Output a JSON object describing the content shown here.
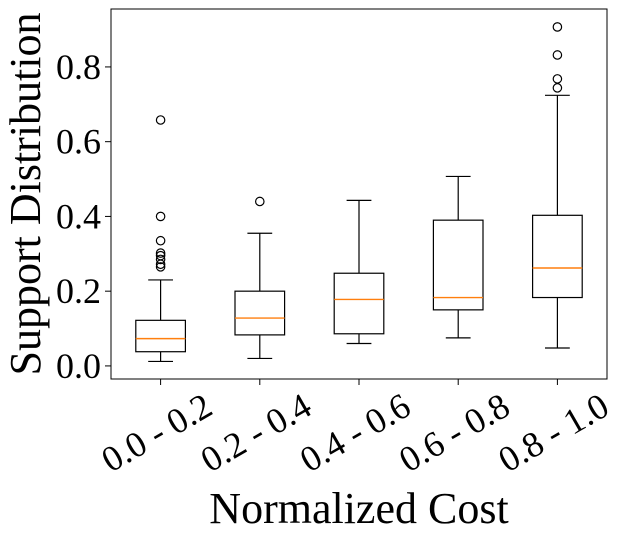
{
  "chart_data": {
    "type": "boxplot",
    "title": "",
    "xlabel": "Normalized Cost",
    "ylabel": "Support Distribution",
    "ylim": [
      -0.035,
      0.955
    ],
    "yticks": [
      0.0,
      0.2,
      0.4,
      0.6,
      0.8
    ],
    "ytick_labels": [
      "0.0",
      "0.2",
      "0.4",
      "0.6",
      "0.8"
    ],
    "grid": false,
    "colors": {
      "box": "#000000",
      "median": "#ff7f0e",
      "outlier": "#000000"
    },
    "categories": [
      "0.0 - 0.2",
      "0.2 - 0.4",
      "0.4 - 0.6",
      "0.6 - 0.8",
      "0.8 - 1.0"
    ],
    "boxes": [
      {
        "whisker_low": 0.012,
        "q1": 0.038,
        "median": 0.073,
        "q3": 0.122,
        "whisker_high": 0.23,
        "outliers": [
          0.265,
          0.272,
          0.285,
          0.295,
          0.302,
          0.335,
          0.4,
          0.658
        ]
      },
      {
        "whisker_low": 0.02,
        "q1": 0.083,
        "median": 0.128,
        "q3": 0.2,
        "whisker_high": 0.355,
        "outliers": [
          0.44
        ]
      },
      {
        "whisker_low": 0.06,
        "q1": 0.086,
        "median": 0.178,
        "q3": 0.248,
        "whisker_high": 0.443,
        "outliers": []
      },
      {
        "whisker_low": 0.075,
        "q1": 0.15,
        "median": 0.183,
        "q3": 0.39,
        "whisker_high": 0.507,
        "outliers": []
      },
      {
        "whisker_low": 0.048,
        "q1": 0.183,
        "median": 0.262,
        "q3": 0.403,
        "whisker_high": 0.724,
        "outliers": [
          0.744,
          0.768,
          0.832,
          0.907
        ]
      }
    ]
  }
}
